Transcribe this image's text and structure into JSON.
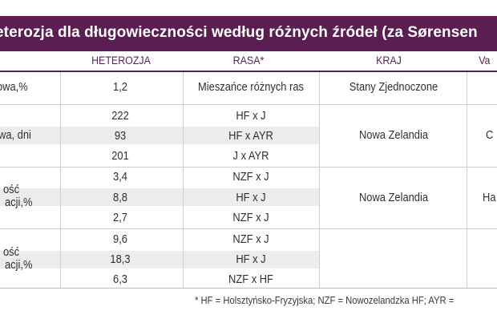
{
  "title": "eterozja dla długowieczności według różnych źródeł (za Sørensen",
  "headers": {
    "heterozja": "HETEROZJA",
    "rasa": "RASA*",
    "kraj": "KRAJ",
    "va": "Va"
  },
  "rows": [
    {
      "label": "owa,%",
      "heterozja": "1,2",
      "rasa": "Mieszańce różnych ras",
      "kraj": "Stany Zjednoczone"
    },
    {
      "heterozja": "222",
      "rasa": "HF x J"
    },
    {
      "heterozja": "93",
      "rasa": "HF x AYR"
    },
    {
      "heterozja": "201",
      "rasa": "J x AYR"
    },
    {
      "heterozja": "3,4",
      "rasa": "NZF x J"
    },
    {
      "heterozja": "8,8",
      "rasa": "HF x J"
    },
    {
      "heterozja": "2,7",
      "rasa": "NZF x J"
    },
    {
      "heterozja": "9,6",
      "rasa": "NZF x J"
    },
    {
      "heterozja": "18,3",
      "rasa": "HF x J"
    },
    {
      "heterozja": "6,3",
      "rasa": "NZF x HF"
    }
  ],
  "groups": [
    {
      "label": "wa, dni",
      "kraj": "Nowa Zelandia",
      "extra": "C"
    },
    {
      "label_line1": "ość",
      "label_line2": "acji,%",
      "kraj": "Nowa Zelandia",
      "extra": "Ha"
    },
    {
      "label_line1": "ość",
      "label_line2": "acji,%"
    }
  ],
  "footnote": "* HF = Holsztyńsko-Fryzyjska; NZF = Nowozelandzka HF; AYR ="
}
